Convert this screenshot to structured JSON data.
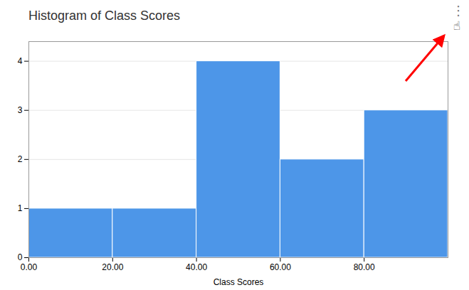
{
  "chart_data": {
    "type": "histogram",
    "title": "Histogram of Class Scores",
    "xlabel": "Class Scores",
    "bins": [
      0,
      20,
      40,
      60,
      80,
      100
    ],
    "values": [
      1,
      1,
      4,
      2,
      3
    ],
    "color": "#4d96e8",
    "xlim": [
      0,
      100
    ],
    "xticks": [
      {
        "value": 0,
        "label": "0.00"
      },
      {
        "value": 20,
        "label": "20.00"
      },
      {
        "value": 40,
        "label": "40.00"
      },
      {
        "value": 60,
        "label": "60.00"
      },
      {
        "value": 80,
        "label": "80.00"
      }
    ],
    "ylim": [
      0,
      4.4
    ],
    "yticks": [
      0,
      1,
      2,
      3,
      4
    ],
    "grid": true,
    "annotations": [
      "⋮",
      "☝"
    ]
  }
}
